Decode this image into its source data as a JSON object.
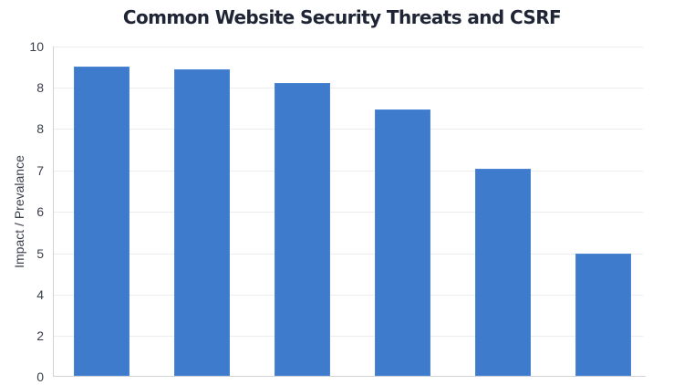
{
  "chart_data": {
    "type": "bar",
    "title": "Common Website Security Threats and CSRF",
    "xlabel": "",
    "ylabel": "Impact / Prevalance",
    "ylim": [
      0,
      10
    ],
    "y_tick_labels": [
      "10",
      "8",
      "8",
      "7",
      "6",
      "5",
      "4",
      "2",
      "0"
    ],
    "categories": [
      "",
      "",
      "",
      "",
      "",
      ""
    ],
    "values": [
      9.4,
      9.3,
      8.9,
      8.1,
      6.3,
      3.7
    ],
    "grid": true,
    "legend": null,
    "bar_color": "#3f7bcc"
  },
  "ticks": {
    "t0": "10",
    "t1": "8",
    "t2": "8",
    "t3": "7",
    "t4": "6",
    "t5": "5",
    "t6": "4",
    "t7": "2",
    "t8": "0"
  }
}
